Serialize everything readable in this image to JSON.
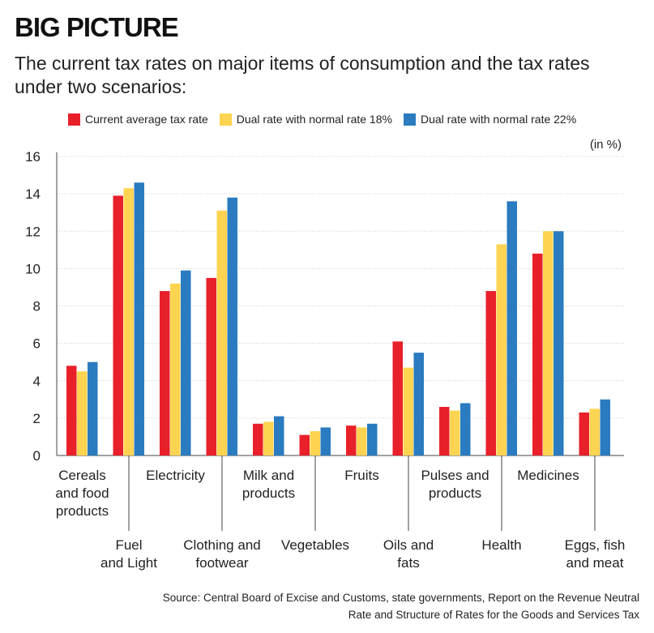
{
  "kicker": "BIG PICTURE",
  "subtitle": "The current tax rates on major items of consumption and the tax rates under two scenarios:",
  "unit_note": "(in %)",
  "source": {
    "line1": "Source: Central Board of Excise and Customs, state governments, Report on the Revenue Neutral",
    "line2": "Rate and Structure of Rates for the Goods and Services Tax"
  },
  "chart_data": {
    "type": "bar",
    "title": "BIG PICTURE",
    "xlabel": "",
    "ylabel": "(in %)",
    "ylim": [
      0,
      16
    ],
    "yticks": [
      0,
      2,
      4,
      6,
      8,
      10,
      12,
      14,
      16
    ],
    "grid": true,
    "legend_position": "top",
    "categories": [
      "Cereals and food products",
      "Fuel and Light",
      "Electricity",
      "Clothing and footwear",
      "Milk and products",
      "Vegetables",
      "Fruits",
      "Oils and fats",
      "Pulses and products",
      "Health",
      "Medicines",
      "Eggs, fish and meat"
    ],
    "category_label_lines": [
      [
        "Cereals",
        "and food",
        "products"
      ],
      [
        "Fuel",
        "and Light"
      ],
      [
        "Electricity"
      ],
      [
        "Clothing and",
        "footwear"
      ],
      [
        "Milk and",
        "products"
      ],
      [
        "Vegetables"
      ],
      [
        "Fruits"
      ],
      [
        "Oils and",
        "fats"
      ],
      [
        "Pulses and",
        "products"
      ],
      [
        "Health"
      ],
      [
        "Medicines"
      ],
      [
        "Eggs, fish",
        "and meat"
      ]
    ],
    "series": [
      {
        "name": "Current average tax rate",
        "color": "#e8202a",
        "values": [
          4.8,
          13.9,
          8.8,
          9.5,
          1.7,
          1.1,
          1.6,
          6.1,
          2.6,
          8.8,
          10.8,
          2.3
        ]
      },
      {
        "name": "Dual rate with normal rate 18%",
        "color": "#fdd451",
        "values": [
          4.5,
          14.3,
          9.2,
          13.1,
          1.8,
          1.3,
          1.5,
          4.7,
          2.4,
          11.3,
          12.0,
          2.5
        ]
      },
      {
        "name": "Dual rate with normal rate 22%",
        "color": "#2a7bc0",
        "values": [
          5.0,
          14.6,
          9.9,
          13.8,
          2.1,
          1.5,
          1.7,
          5.5,
          2.8,
          13.6,
          12.0,
          3.0
        ]
      }
    ]
  }
}
